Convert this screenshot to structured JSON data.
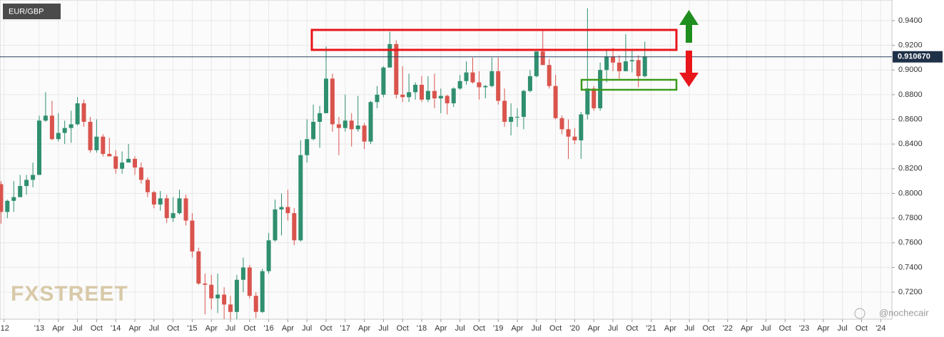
{
  "chart_data": {
    "type": "candlestick",
    "symbol": "EUR/GBP",
    "watermark": "FXSTREET",
    "credit": "@nochecair",
    "up_color": "#2f8f6f",
    "down_color": "#d9544d",
    "grid": true,
    "x": [
      2012.5,
      2012.583,
      2012.667,
      2012.75,
      2012.833,
      2012.917,
      2013.0,
      2013.083,
      2013.167,
      2013.25,
      2013.333,
      2013.417,
      2013.5,
      2013.583,
      2013.667,
      2013.75,
      2013.833,
      2013.917,
      2014.0,
      2014.083,
      2014.167,
      2014.25,
      2014.333,
      2014.417,
      2014.5,
      2014.583,
      2014.667,
      2014.75,
      2014.833,
      2014.917,
      2015.0,
      2015.083,
      2015.167,
      2015.25,
      2015.333,
      2015.417,
      2015.5,
      2015.583,
      2015.667,
      2015.75,
      2015.833,
      2015.917,
      2016.0,
      2016.083,
      2016.167,
      2016.25,
      2016.333,
      2016.417,
      2016.5,
      2016.583,
      2016.667,
      2016.75,
      2016.833,
      2016.917,
      2017.0,
      2017.083,
      2017.167,
      2017.25,
      2017.333,
      2017.417,
      2017.5,
      2017.583,
      2017.667,
      2017.75,
      2017.833,
      2017.917,
      2018.0,
      2018.083,
      2018.167,
      2018.25,
      2018.333,
      2018.417,
      2018.5,
      2018.583,
      2018.667,
      2018.75,
      2018.833,
      2018.917,
      2019.0,
      2019.083,
      2019.167,
      2019.25,
      2019.333,
      2019.417,
      2019.5,
      2019.583,
      2019.667,
      2019.75,
      2019.833,
      2019.917,
      2020.0,
      2020.083,
      2020.167,
      2020.25,
      2020.333,
      2020.417,
      2020.5,
      2020.583,
      2020.667,
      2020.75,
      2020.833,
      2020.917
    ],
    "open": [
      0.8075,
      0.785,
      0.794,
      0.797,
      0.806,
      0.811,
      0.815,
      0.859,
      0.863,
      0.844,
      0.849,
      0.853,
      0.856,
      0.873,
      0.858,
      0.835,
      0.846,
      0.832,
      0.83,
      0.82,
      0.825,
      0.828,
      0.821,
      0.811,
      0.801,
      0.791,
      0.796,
      0.78,
      0.784,
      0.796,
      0.778,
      0.753,
      0.727,
      0.726,
      0.715,
      0.718,
      0.71,
      0.704,
      0.73,
      0.74,
      0.717,
      0.704,
      0.737,
      0.762,
      0.787,
      0.789,
      0.784,
      0.762,
      0.831,
      0.844,
      0.858,
      0.865,
      0.893,
      0.856,
      0.853,
      0.859,
      0.852,
      0.855,
      0.842,
      0.874,
      0.88,
      0.902,
      0.921,
      0.88,
      0.878,
      0.882,
      0.888,
      0.876,
      0.883,
      0.877,
      0.879,
      0.873,
      0.885,
      0.891,
      0.898,
      0.89,
      0.886,
      0.887,
      0.899,
      0.875,
      0.858,
      0.862,
      0.862,
      0.883,
      0.895,
      0.915,
      0.904,
      0.887,
      0.861,
      0.852,
      0.846,
      0.843,
      0.864,
      0.885,
      0.869,
      0.9,
      0.911,
      0.906,
      0.899,
      0.907,
      0.908,
      0.895
    ],
    "high": [
      0.81,
      0.795,
      0.81,
      0.815,
      0.815,
      0.825,
      0.863,
      0.882,
      0.875,
      0.865,
      0.859,
      0.867,
      0.878,
      0.876,
      0.862,
      0.86,
      0.848,
      0.845,
      0.835,
      0.834,
      0.84,
      0.83,
      0.825,
      0.813,
      0.802,
      0.802,
      0.799,
      0.797,
      0.803,
      0.799,
      0.784,
      0.756,
      0.735,
      0.734,
      0.735,
      0.724,
      0.717,
      0.734,
      0.748,
      0.742,
      0.72,
      0.739,
      0.768,
      0.795,
      0.8,
      0.803,
      0.788,
      0.843,
      0.86,
      0.872,
      0.871,
      0.919,
      0.897,
      0.862,
      0.88,
      0.865,
      0.879,
      0.857,
      0.875,
      0.887,
      0.903,
      0.931,
      0.924,
      0.903,
      0.897,
      0.89,
      0.895,
      0.895,
      0.897,
      0.885,
      0.88,
      0.886,
      0.896,
      0.907,
      0.91,
      0.899,
      0.888,
      0.91,
      0.91,
      0.885,
      0.873,
      0.869,
      0.884,
      0.9,
      0.915,
      0.933,
      0.909,
      0.896,
      0.863,
      0.86,
      0.853,
      0.866,
      0.95,
      0.887,
      0.906,
      0.917,
      0.918,
      0.912,
      0.929,
      0.916,
      0.912,
      0.923
    ],
    "low": [
      0.7755,
      0.78,
      0.785,
      0.797,
      0.799,
      0.805,
      0.815,
      0.858,
      0.843,
      0.842,
      0.84,
      0.841,
      0.855,
      0.854,
      0.833,
      0.833,
      0.83,
      0.83,
      0.816,
      0.816,
      0.825,
      0.815,
      0.808,
      0.797,
      0.788,
      0.786,
      0.776,
      0.777,
      0.783,
      0.774,
      0.748,
      0.726,
      0.702,
      0.706,
      0.703,
      0.695,
      0.694,
      0.693,
      0.72,
      0.715,
      0.699,
      0.703,
      0.735,
      0.761,
      0.766,
      0.778,
      0.758,
      0.761,
      0.825,
      0.843,
      0.837,
      0.865,
      0.85,
      0.831,
      0.85,
      0.838,
      0.85,
      0.836,
      0.84,
      0.869,
      0.878,
      0.902,
      0.877,
      0.874,
      0.874,
      0.876,
      0.874,
      0.874,
      0.869,
      0.865,
      0.864,
      0.87,
      0.884,
      0.888,
      0.889,
      0.876,
      0.877,
      0.886,
      0.872,
      0.854,
      0.847,
      0.854,
      0.852,
      0.882,
      0.894,
      0.906,
      0.885,
      0.86,
      0.848,
      0.828,
      0.84,
      0.828,
      0.86,
      0.867,
      0.867,
      0.89,
      0.899,
      0.893,
      0.899,
      0.898,
      0.886,
      0.894
    ],
    "close": [
      0.785,
      0.794,
      0.797,
      0.806,
      0.811,
      0.815,
      0.859,
      0.863,
      0.844,
      0.849,
      0.853,
      0.856,
      0.873,
      0.858,
      0.835,
      0.846,
      0.832,
      0.83,
      0.82,
      0.825,
      0.828,
      0.821,
      0.811,
      0.801,
      0.791,
      0.796,
      0.78,
      0.784,
      0.796,
      0.778,
      0.753,
      0.727,
      0.726,
      0.715,
      0.718,
      0.71,
      0.704,
      0.73,
      0.74,
      0.717,
      0.704,
      0.737,
      0.762,
      0.787,
      0.789,
      0.784,
      0.762,
      0.831,
      0.844,
      0.858,
      0.865,
      0.893,
      0.856,
      0.853,
      0.859,
      0.852,
      0.855,
      0.842,
      0.874,
      0.88,
      0.902,
      0.921,
      0.88,
      0.878,
      0.882,
      0.888,
      0.876,
      0.883,
      0.877,
      0.879,
      0.873,
      0.885,
      0.891,
      0.898,
      0.89,
      0.886,
      0.887,
      0.899,
      0.875,
      0.858,
      0.862,
      0.862,
      0.883,
      0.895,
      0.915,
      0.904,
      0.887,
      0.861,
      0.852,
      0.846,
      0.843,
      0.864,
      0.885,
      0.869,
      0.9,
      0.911,
      0.906,
      0.899,
      0.907,
      0.908,
      0.895,
      0.911
    ],
    "xlim": [
      2012.487,
      2024.147
    ],
    "ylim": [
      0.6981,
      0.9567
    ],
    "last_price": {
      "value": 0.91067,
      "label": "0.910670"
    },
    "yticks": [
      {
        "value": 0.72,
        "label": "0.7200"
      },
      {
        "value": 0.74,
        "label": "0.7400"
      },
      {
        "value": 0.76,
        "label": "0.7600"
      },
      {
        "value": 0.78,
        "label": "0.7800"
      },
      {
        "value": 0.8,
        "label": "0.8000"
      },
      {
        "value": 0.82,
        "label": "0.8200"
      },
      {
        "value": 0.84,
        "label": "0.8400"
      },
      {
        "value": 0.86,
        "label": "0.8600"
      },
      {
        "value": 0.88,
        "label": "0.8800"
      },
      {
        "value": 0.9,
        "label": "0.9000"
      },
      {
        "value": 0.92,
        "label": "0.9200"
      },
      {
        "value": 0.94,
        "label": "0.9400"
      }
    ],
    "xticks": [
      {
        "value": 2012.54,
        "label": "'12"
      },
      {
        "value": 2013,
        "label": "'13"
      },
      {
        "value": 2013.25,
        "label": "Apr"
      },
      {
        "value": 2013.5,
        "label": "Jul"
      },
      {
        "value": 2013.75,
        "label": "Oct"
      },
      {
        "value": 2014,
        "label": "'14"
      },
      {
        "value": 2014.25,
        "label": "Apr"
      },
      {
        "value": 2014.5,
        "label": "Jul"
      },
      {
        "value": 2014.75,
        "label": "Oct"
      },
      {
        "value": 2015,
        "label": "'15"
      },
      {
        "value": 2015.25,
        "label": "Apr"
      },
      {
        "value": 2015.5,
        "label": "Jul"
      },
      {
        "value": 2015.75,
        "label": "Oct"
      },
      {
        "value": 2016,
        "label": "'16"
      },
      {
        "value": 2016.25,
        "label": "Apr"
      },
      {
        "value": 2016.5,
        "label": "Jul"
      },
      {
        "value": 2016.75,
        "label": "Oct"
      },
      {
        "value": 2017,
        "label": "'17"
      },
      {
        "value": 2017.25,
        "label": "Apr"
      },
      {
        "value": 2017.5,
        "label": "Jul"
      },
      {
        "value": 2017.75,
        "label": "Oct"
      },
      {
        "value": 2018,
        "label": "'18"
      },
      {
        "value": 2018.25,
        "label": "Apr"
      },
      {
        "value": 2018.5,
        "label": "Jul"
      },
      {
        "value": 2018.75,
        "label": "Oct"
      },
      {
        "value": 2019,
        "label": "'19"
      },
      {
        "value": 2019.25,
        "label": "Apr"
      },
      {
        "value": 2019.5,
        "label": "Jul"
      },
      {
        "value": 2019.75,
        "label": "Oct"
      },
      {
        "value": 2020,
        "label": "'20"
      },
      {
        "value": 2020.25,
        "label": "Apr"
      },
      {
        "value": 2020.5,
        "label": "Jul"
      },
      {
        "value": 2020.75,
        "label": "Oct"
      },
      {
        "value": 2021,
        "label": "'21"
      },
      {
        "value": 2021.25,
        "label": "Apr"
      },
      {
        "value": 2021.5,
        "label": "Jul"
      },
      {
        "value": 2021.75,
        "label": "Oct"
      },
      {
        "value": 2022,
        "label": "'22"
      },
      {
        "value": 2022.25,
        "label": "Apr"
      },
      {
        "value": 2022.5,
        "label": "Jul"
      },
      {
        "value": 2022.75,
        "label": "Oct"
      },
      {
        "value": 2023,
        "label": "'23"
      },
      {
        "value": 2023.25,
        "label": "Apr"
      },
      {
        "value": 2023.5,
        "label": "Jul"
      },
      {
        "value": 2023.75,
        "label": "Oct"
      },
      {
        "value": 2024,
        "label": "'24"
      }
    ]
  }
}
